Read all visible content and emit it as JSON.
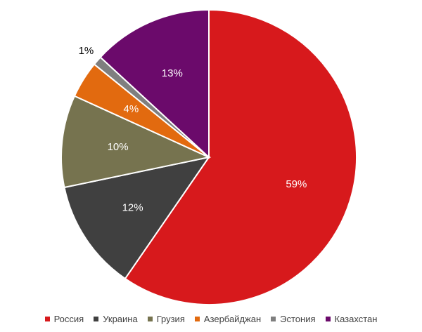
{
  "chart_data": {
    "type": "pie",
    "title": "",
    "categories": [
      "Россия",
      "Украина",
      "Грузия",
      "Азербайджан",
      "Эстония",
      "Казахстан"
    ],
    "values": [
      59,
      12,
      10,
      4,
      1,
      13
    ],
    "labels": [
      "59%",
      "12%",
      "10%",
      "4%",
      "1%",
      "13%"
    ],
    "colors": [
      "#d7191c",
      "#404040",
      "#76734f",
      "#e26a0f",
      "#7f7f7f",
      "#6b0a6b"
    ],
    "start_angle_deg": 0,
    "direction": "clockwise",
    "legend": {
      "position": "bottom"
    }
  }
}
